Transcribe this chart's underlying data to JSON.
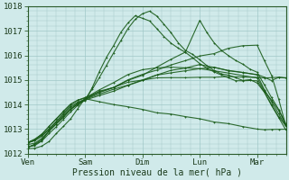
{
  "bg_color": "#d0eaea",
  "plot_bg": "#d0eaea",
  "grid_color": "#a0c8c8",
  "line_color": "#1a5c1a",
  "xlabel": "Pression niveau de la mer( hPa )",
  "xtick_labels": [
    "Ven",
    "Sam",
    "Dim",
    "Lun",
    "Mar"
  ],
  "xtick_positions": [
    0,
    48,
    96,
    144,
    192
  ],
  "ylim": [
    1012,
    1018
  ],
  "yticks": [
    1012,
    1013,
    1014,
    1015,
    1016,
    1017,
    1018
  ],
  "xlim": [
    0,
    216
  ],
  "series": [
    {
      "pts": [
        [
          0,
          1012.2
        ],
        [
          6,
          1012.3
        ],
        [
          12,
          1012.5
        ],
        [
          18,
          1012.8
        ],
        [
          24,
          1013.1
        ],
        [
          30,
          1013.4
        ],
        [
          36,
          1013.7
        ],
        [
          42,
          1014.0
        ],
        [
          48,
          1014.2
        ],
        [
          54,
          1014.6
        ],
        [
          60,
          1015.1
        ],
        [
          66,
          1015.6
        ],
        [
          72,
          1016.1
        ],
        [
          78,
          1016.6
        ],
        [
          84,
          1017.1
        ],
        [
          90,
          1017.5
        ],
        [
          96,
          1017.7
        ],
        [
          102,
          1017.8
        ],
        [
          108,
          1017.6
        ],
        [
          114,
          1017.3
        ],
        [
          120,
          1016.9
        ],
        [
          126,
          1016.5
        ],
        [
          132,
          1016.2
        ],
        [
          138,
          1016.0
        ],
        [
          144,
          1015.8
        ],
        [
          150,
          1015.6
        ],
        [
          156,
          1015.4
        ],
        [
          162,
          1015.3
        ],
        [
          168,
          1015.2
        ],
        [
          174,
          1015.1
        ],
        [
          180,
          1015.0
        ],
        [
          186,
          1015.0
        ],
        [
          192,
          1014.9
        ],
        [
          198,
          1014.5
        ],
        [
          204,
          1014.0
        ],
        [
          210,
          1013.5
        ],
        [
          216,
          1013.0
        ]
      ]
    },
    {
      "pts": [
        [
          0,
          1012.2
        ],
        [
          6,
          1012.3
        ],
        [
          12,
          1012.5
        ],
        [
          18,
          1012.9
        ],
        [
          24,
          1013.2
        ],
        [
          30,
          1013.5
        ],
        [
          36,
          1013.8
        ],
        [
          42,
          1014.1
        ],
        [
          48,
          1014.2
        ],
        [
          54,
          1014.7
        ],
        [
          60,
          1015.3
        ],
        [
          66,
          1015.9
        ],
        [
          72,
          1016.4
        ],
        [
          78,
          1016.9
        ],
        [
          84,
          1017.3
        ],
        [
          90,
          1017.6
        ],
        [
          96,
          1017.5
        ],
        [
          102,
          1017.4
        ],
        [
          108,
          1017.1
        ],
        [
          114,
          1016.8
        ],
        [
          120,
          1016.5
        ],
        [
          126,
          1016.3
        ],
        [
          132,
          1016.1
        ],
        [
          138,
          1015.9
        ],
        [
          144,
          1015.7
        ],
        [
          150,
          1015.5
        ],
        [
          156,
          1015.3
        ],
        [
          162,
          1015.2
        ],
        [
          168,
          1015.1
        ],
        [
          174,
          1015.0
        ],
        [
          180,
          1015.0
        ],
        [
          186,
          1015.0
        ],
        [
          192,
          1015.0
        ],
        [
          198,
          1014.5
        ],
        [
          204,
          1014.0
        ],
        [
          210,
          1013.5
        ],
        [
          216,
          1013.1
        ]
      ]
    },
    {
      "pts": [
        [
          0,
          1012.3
        ],
        [
          6,
          1012.4
        ],
        [
          12,
          1012.6
        ],
        [
          18,
          1012.9
        ],
        [
          24,
          1013.2
        ],
        [
          30,
          1013.5
        ],
        [
          36,
          1013.8
        ],
        [
          42,
          1014.0
        ],
        [
          48,
          1014.2
        ],
        [
          60,
          1014.5
        ],
        [
          72,
          1014.7
        ],
        [
          84,
          1015.0
        ],
        [
          96,
          1015.2
        ],
        [
          108,
          1015.5
        ],
        [
          120,
          1015.8
        ],
        [
          132,
          1016.1
        ],
        [
          144,
          1017.4
        ],
        [
          150,
          1016.9
        ],
        [
          156,
          1016.5
        ],
        [
          162,
          1016.2
        ],
        [
          168,
          1016.0
        ],
        [
          174,
          1015.8
        ],
        [
          180,
          1015.6
        ],
        [
          186,
          1015.4
        ],
        [
          192,
          1015.3
        ],
        [
          198,
          1014.8
        ],
        [
          204,
          1014.3
        ],
        [
          210,
          1013.8
        ],
        [
          216,
          1013.2
        ]
      ]
    },
    {
      "pts": [
        [
          0,
          1012.3
        ],
        [
          6,
          1012.4
        ],
        [
          12,
          1012.6
        ],
        [
          18,
          1012.9
        ],
        [
          24,
          1013.2
        ],
        [
          30,
          1013.5
        ],
        [
          36,
          1013.8
        ],
        [
          42,
          1014.0
        ],
        [
          48,
          1014.2
        ],
        [
          60,
          1014.4
        ],
        [
          72,
          1014.6
        ],
        [
          84,
          1014.8
        ],
        [
          96,
          1015.0
        ],
        [
          108,
          1015.2
        ],
        [
          120,
          1015.4
        ],
        [
          132,
          1015.5
        ],
        [
          144,
          1015.6
        ],
        [
          156,
          1015.5
        ],
        [
          168,
          1015.4
        ],
        [
          180,
          1015.3
        ],
        [
          192,
          1015.2
        ],
        [
          198,
          1014.6
        ],
        [
          204,
          1014.1
        ],
        [
          210,
          1013.6
        ],
        [
          216,
          1013.1
        ]
      ]
    },
    {
      "pts": [
        [
          0,
          1012.4
        ],
        [
          6,
          1012.5
        ],
        [
          12,
          1012.7
        ],
        [
          18,
          1013.0
        ],
        [
          24,
          1013.3
        ],
        [
          30,
          1013.6
        ],
        [
          36,
          1013.9
        ],
        [
          42,
          1014.1
        ],
        [
          48,
          1014.2
        ],
        [
          60,
          1014.4
        ],
        [
          72,
          1014.6
        ],
        [
          84,
          1014.8
        ],
        [
          96,
          1015.0
        ],
        [
          108,
          1015.2
        ],
        [
          120,
          1015.3
        ],
        [
          132,
          1015.4
        ],
        [
          144,
          1015.5
        ],
        [
          156,
          1015.4
        ],
        [
          168,
          1015.3
        ],
        [
          180,
          1015.2
        ],
        [
          192,
          1015.1
        ],
        [
          198,
          1014.6
        ],
        [
          204,
          1014.2
        ],
        [
          210,
          1013.8
        ],
        [
          216,
          1013.2
        ]
      ]
    },
    {
      "pts": [
        [
          0,
          1012.4
        ],
        [
          6,
          1012.5
        ],
        [
          12,
          1012.7
        ],
        [
          18,
          1013.0
        ],
        [
          24,
          1013.3
        ],
        [
          30,
          1013.6
        ],
        [
          36,
          1013.9
        ],
        [
          42,
          1014.1
        ],
        [
          48,
          1014.2
        ],
        [
          60,
          1014.5
        ],
        [
          72,
          1014.7
        ],
        [
          84,
          1015.0
        ],
        [
          96,
          1015.2
        ],
        [
          108,
          1015.4
        ],
        [
          120,
          1015.6
        ],
        [
          132,
          1015.8
        ],
        [
          144,
          1016.0
        ],
        [
          156,
          1016.1
        ],
        [
          168,
          1016.3
        ],
        [
          180,
          1016.4
        ],
        [
          192,
          1016.4
        ],
        [
          198,
          1015.8
        ],
        [
          204,
          1015.2
        ],
        [
          210,
          1014.2
        ],
        [
          216,
          1013.1
        ]
      ]
    },
    {
      "pts": [
        [
          0,
          1012.5
        ],
        [
          6,
          1012.6
        ],
        [
          12,
          1012.8
        ],
        [
          18,
          1013.1
        ],
        [
          24,
          1013.4
        ],
        [
          30,
          1013.7
        ],
        [
          36,
          1014.0
        ],
        [
          42,
          1014.2
        ],
        [
          48,
          1014.3
        ],
        [
          60,
          1014.6
        ],
        [
          72,
          1014.9
        ],
        [
          84,
          1015.2
        ],
        [
          96,
          1015.4
        ],
        [
          108,
          1015.5
        ],
        [
          120,
          1015.5
        ],
        [
          132,
          1015.5
        ],
        [
          144,
          1015.5
        ],
        [
          156,
          1015.5
        ],
        [
          168,
          1015.4
        ],
        [
          180,
          1015.3
        ],
        [
          192,
          1015.2
        ],
        [
          198,
          1015.1
        ],
        [
          204,
          1015.0
        ],
        [
          210,
          1015.1
        ],
        [
          216,
          1015.1
        ]
      ]
    },
    {
      "pts": [
        [
          0,
          1012.5
        ],
        [
          6,
          1012.6
        ],
        [
          12,
          1012.8
        ],
        [
          18,
          1013.1
        ],
        [
          24,
          1013.4
        ],
        [
          30,
          1013.7
        ],
        [
          36,
          1014.0
        ],
        [
          42,
          1014.2
        ],
        [
          48,
          1014.3
        ],
        [
          60,
          1014.5
        ],
        [
          72,
          1014.7
        ],
        [
          84,
          1014.9
        ],
        [
          96,
          1015.0
        ],
        [
          108,
          1015.1
        ],
        [
          120,
          1015.1
        ],
        [
          132,
          1015.1
        ],
        [
          144,
          1015.1
        ],
        [
          156,
          1015.1
        ],
        [
          168,
          1015.1
        ],
        [
          180,
          1015.1
        ],
        [
          192,
          1015.1
        ],
        [
          198,
          1015.1
        ],
        [
          204,
          1015.1
        ],
        [
          210,
          1015.1
        ],
        [
          216,
          1015.1
        ]
      ]
    },
    {
      "pts": [
        [
          0,
          1012.2
        ],
        [
          6,
          1012.2
        ],
        [
          12,
          1012.3
        ],
        [
          18,
          1012.5
        ],
        [
          24,
          1012.8
        ],
        [
          30,
          1013.1
        ],
        [
          36,
          1013.4
        ],
        [
          42,
          1013.8
        ],
        [
          48,
          1014.2
        ],
        [
          60,
          1014.1
        ],
        [
          72,
          1014.0
        ],
        [
          84,
          1013.9
        ],
        [
          96,
          1013.8
        ],
        [
          108,
          1013.7
        ],
        [
          120,
          1013.6
        ],
        [
          132,
          1013.5
        ],
        [
          144,
          1013.4
        ],
        [
          156,
          1013.3
        ],
        [
          168,
          1013.2
        ],
        [
          180,
          1013.1
        ],
        [
          192,
          1013.0
        ],
        [
          198,
          1013.0
        ],
        [
          204,
          1013.0
        ],
        [
          210,
          1013.0
        ],
        [
          216,
          1013.0
        ]
      ]
    }
  ]
}
